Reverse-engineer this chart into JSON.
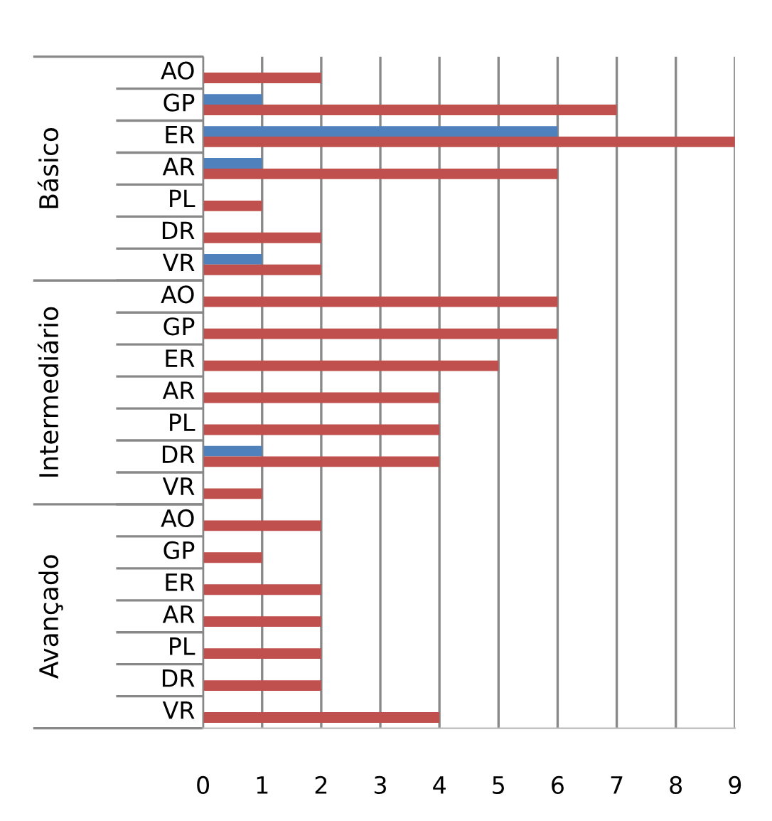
{
  "chart_data": {
    "type": "bar",
    "orientation": "horizontal",
    "categories": [
      "AO",
      "GP",
      "ER",
      "AR",
      "PL",
      "DR",
      "VR",
      "AO",
      "GP",
      "ER",
      "AR",
      "PL",
      "DR",
      "VR",
      "AO",
      "GP",
      "ER",
      "AR",
      "PL",
      "DR",
      "VR"
    ],
    "series": [
      {
        "color": "#4f81bd",
        "values": [
          0,
          1,
          6,
          1,
          0,
          0,
          1,
          0,
          0,
          0,
          0,
          0,
          1,
          0,
          0,
          0,
          0,
          0,
          0,
          0,
          0
        ]
      },
      {
        "color": "#c0504d",
        "values": [
          2,
          7,
          9,
          6,
          1,
          2,
          2,
          6,
          6,
          5,
          4,
          4,
          4,
          1,
          2,
          1,
          2,
          2,
          2,
          2,
          4
        ]
      }
    ],
    "annotations": [
      "Básico",
      "Intermediário",
      "Avançado"
    ],
    "xlim": [
      0,
      9
    ],
    "xticks": [
      0,
      1,
      2,
      3,
      4,
      5,
      6,
      7,
      8,
      9
    ],
    "grid": "x",
    "legend": false
  }
}
